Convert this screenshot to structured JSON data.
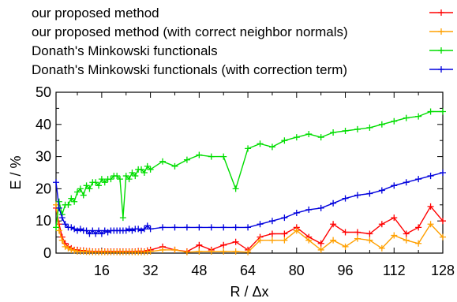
{
  "chart_data": {
    "type": "line",
    "xlabel": "R / Δx",
    "ylabel": "E / %",
    "xlim": [
      1,
      128
    ],
    "ylim": [
      0,
      50
    ],
    "xticks": [
      16,
      32,
      48,
      64,
      80,
      96,
      112,
      128
    ],
    "yticks": [
      0,
      10,
      20,
      30,
      40,
      50
    ],
    "grid": false,
    "legend_position": "top-right",
    "marker": "plus",
    "series": [
      {
        "name": "our proposed method",
        "color": "#ff0000",
        "points": [
          [
            1,
            14
          ],
          [
            2,
            9
          ],
          [
            3,
            5
          ],
          [
            4,
            3
          ],
          [
            5,
            2
          ],
          [
            6,
            1.5
          ],
          [
            7,
            1
          ],
          [
            8,
            1
          ],
          [
            9,
            0.8
          ],
          [
            10,
            0.8
          ],
          [
            11,
            0.6
          ],
          [
            12,
            0.6
          ],
          [
            13,
            0.5
          ],
          [
            14,
            0.5
          ],
          [
            15,
            0.5
          ],
          [
            16,
            0.5
          ],
          [
            17,
            0.5
          ],
          [
            18,
            0.5
          ],
          [
            19,
            0.5
          ],
          [
            20,
            0.5
          ],
          [
            21,
            0.5
          ],
          [
            22,
            0.5
          ],
          [
            23,
            0.5
          ],
          [
            24,
            0.5
          ],
          [
            25,
            0.5
          ],
          [
            26,
            0.5
          ],
          [
            27,
            0.5
          ],
          [
            28,
            0.6
          ],
          [
            29,
            0.6
          ],
          [
            30,
            0.5
          ],
          [
            31,
            0.8
          ],
          [
            32,
            1
          ],
          [
            36,
            2
          ],
          [
            40,
            1
          ],
          [
            44,
            0.5
          ],
          [
            48,
            2.5
          ],
          [
            52,
            1
          ],
          [
            56,
            2.5
          ],
          [
            60,
            3.5
          ],
          [
            64,
            1
          ],
          [
            68,
            5
          ],
          [
            72,
            6
          ],
          [
            76,
            6
          ],
          [
            80,
            8
          ],
          [
            84,
            5
          ],
          [
            88,
            3
          ],
          [
            92,
            9
          ],
          [
            96,
            6.5
          ],
          [
            100,
            6.5
          ],
          [
            104,
            6
          ],
          [
            108,
            9
          ],
          [
            112,
            11
          ],
          [
            116,
            6
          ],
          [
            120,
            8
          ],
          [
            124,
            14.5
          ],
          [
            128,
            10
          ]
        ]
      },
      {
        "name": "our proposed method (with correct neighbor normals)",
        "color": "#ffa000",
        "points": [
          [
            1,
            15
          ],
          [
            2,
            7
          ],
          [
            3,
            4
          ],
          [
            4,
            2
          ],
          [
            5,
            1.5
          ],
          [
            6,
            1
          ],
          [
            7,
            0.8
          ],
          [
            8,
            0.5
          ],
          [
            9,
            0.5
          ],
          [
            10,
            0.5
          ],
          [
            11,
            0.4
          ],
          [
            12,
            0.4
          ],
          [
            13,
            0.3
          ],
          [
            14,
            0.3
          ],
          [
            15,
            0.3
          ],
          [
            16,
            0.3
          ],
          [
            17,
            0.3
          ],
          [
            18,
            0.3
          ],
          [
            19,
            0.3
          ],
          [
            20,
            0.3
          ],
          [
            21,
            0.3
          ],
          [
            22,
            0.3
          ],
          [
            23,
            0.3
          ],
          [
            24,
            0.3
          ],
          [
            25,
            0.3
          ],
          [
            26,
            0.3
          ],
          [
            27,
            0.3
          ],
          [
            28,
            0.3
          ],
          [
            29,
            0.3
          ],
          [
            30,
            0.3
          ],
          [
            31,
            0.4
          ],
          [
            32,
            0.5
          ],
          [
            36,
            1
          ],
          [
            40,
            1
          ],
          [
            44,
            0.3
          ],
          [
            48,
            0.5
          ],
          [
            52,
            0.5
          ],
          [
            56,
            0.5
          ],
          [
            60,
            0.5
          ],
          [
            64,
            0.3
          ],
          [
            68,
            4
          ],
          [
            72,
            4
          ],
          [
            76,
            4
          ],
          [
            80,
            7
          ],
          [
            84,
            4
          ],
          [
            88,
            1
          ],
          [
            92,
            4
          ],
          [
            96,
            2
          ],
          [
            100,
            4.5
          ],
          [
            104,
            4
          ],
          [
            108,
            1.5
          ],
          [
            112,
            5.5
          ],
          [
            116,
            4
          ],
          [
            120,
            3
          ],
          [
            124,
            9
          ],
          [
            128,
            5
          ]
        ]
      },
      {
        "name": "Donath's Minkowski functionals",
        "color": "#00dd00",
        "points": [
          [
            1,
            8
          ],
          [
            2,
            16
          ],
          [
            3,
            12
          ],
          [
            4,
            15
          ],
          [
            5,
            15
          ],
          [
            6,
            17
          ],
          [
            7,
            16
          ],
          [
            8,
            19
          ],
          [
            9,
            20
          ],
          [
            10,
            18
          ],
          [
            11,
            21
          ],
          [
            12,
            20
          ],
          [
            13,
            22
          ],
          [
            14,
            22
          ],
          [
            15,
            21
          ],
          [
            16,
            23
          ],
          [
            17,
            22
          ],
          [
            18,
            23
          ],
          [
            19,
            23
          ],
          [
            20,
            24
          ],
          [
            21,
            24
          ],
          [
            22,
            23
          ],
          [
            23,
            11
          ],
          [
            24,
            24
          ],
          [
            25,
            23
          ],
          [
            26,
            25
          ],
          [
            27,
            24
          ],
          [
            28,
            26
          ],
          [
            29,
            26
          ],
          [
            30,
            25
          ],
          [
            31,
            27
          ],
          [
            32,
            26
          ],
          [
            36,
            28.5
          ],
          [
            40,
            27
          ],
          [
            44,
            29
          ],
          [
            48,
            30.5
          ],
          [
            52,
            30
          ],
          [
            56,
            30
          ],
          [
            60,
            20
          ],
          [
            64,
            32.5
          ],
          [
            68,
            34
          ],
          [
            72,
            33
          ],
          [
            76,
            35
          ],
          [
            80,
            36
          ],
          [
            84,
            37
          ],
          [
            88,
            36
          ],
          [
            92,
            37.5
          ],
          [
            96,
            38
          ],
          [
            100,
            38.5
          ],
          [
            104,
            39
          ],
          [
            108,
            40
          ],
          [
            112,
            41
          ],
          [
            116,
            42
          ],
          [
            120,
            42.5
          ],
          [
            124,
            44
          ],
          [
            128,
            44
          ]
        ]
      },
      {
        "name": "Donath's Minkowski functionals (with correction term)",
        "color": "#0000dd",
        "points": [
          [
            1,
            22
          ],
          [
            2,
            14
          ],
          [
            3,
            11
          ],
          [
            4,
            9
          ],
          [
            5,
            8
          ],
          [
            6,
            8
          ],
          [
            7,
            7.5
          ],
          [
            8,
            7
          ],
          [
            9,
            7.5
          ],
          [
            10,
            7
          ],
          [
            11,
            7
          ],
          [
            12,
            6
          ],
          [
            13,
            7
          ],
          [
            14,
            6
          ],
          [
            15,
            7
          ],
          [
            16,
            6
          ],
          [
            17,
            7
          ],
          [
            18,
            6.5
          ],
          [
            19,
            7
          ],
          [
            20,
            7
          ],
          [
            21,
            7
          ],
          [
            22,
            7
          ],
          [
            23,
            7
          ],
          [
            24,
            7
          ],
          [
            25,
            7.5
          ],
          [
            26,
            7
          ],
          [
            27,
            7.5
          ],
          [
            28,
            7.5
          ],
          [
            29,
            7
          ],
          [
            30,
            7.5
          ],
          [
            31,
            8.5
          ],
          [
            32,
            7.5
          ],
          [
            36,
            8
          ],
          [
            40,
            8
          ],
          [
            44,
            8
          ],
          [
            48,
            8
          ],
          [
            52,
            8
          ],
          [
            56,
            8
          ],
          [
            60,
            8
          ],
          [
            64,
            8
          ],
          [
            68,
            9
          ],
          [
            72,
            10
          ],
          [
            76,
            11
          ],
          [
            80,
            12.5
          ],
          [
            84,
            13.5
          ],
          [
            88,
            14
          ],
          [
            92,
            15.5
          ],
          [
            96,
            17
          ],
          [
            100,
            18
          ],
          [
            104,
            18.5
          ],
          [
            108,
            19.5
          ],
          [
            112,
            21
          ],
          [
            116,
            22
          ],
          [
            120,
            23
          ],
          [
            124,
            24
          ],
          [
            128,
            25
          ]
        ]
      }
    ]
  }
}
